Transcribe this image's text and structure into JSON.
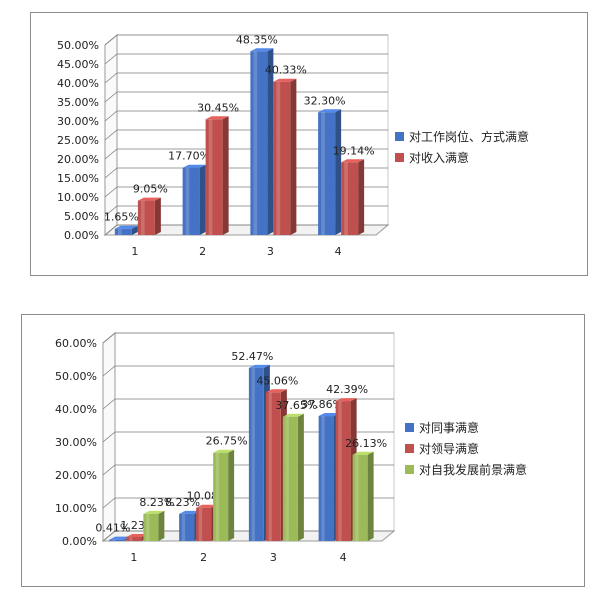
{
  "chart_data": [
    {
      "type": "bar",
      "categories": [
        "1",
        "2",
        "3",
        "4"
      ],
      "series": [
        {
          "name": "对工作岗位、方式满意",
          "values": [
            1.65,
            17.7,
            48.35,
            32.3
          ],
          "labels": [
            "1.65%",
            "17.70%",
            "48.35%",
            "32.30%"
          ],
          "color": "#4472c4"
        },
        {
          "name": "对收入满意",
          "values": [
            9.05,
            30.45,
            40.33,
            19.14
          ],
          "labels": [
            "9.05%",
            "30.45%",
            "40.33%",
            "19.14%"
          ],
          "color": "#c0504d"
        }
      ],
      "ylim": [
        0,
        50
      ],
      "yticks": [
        "0.00%",
        "5.00%",
        "10.00%",
        "15.00%",
        "20.00%",
        "25.00%",
        "30.00%",
        "35.00%",
        "40.00%",
        "45.00%",
        "50.00%"
      ],
      "grid": true,
      "legend_position": "right",
      "style": "3d-column"
    },
    {
      "type": "bar",
      "categories": [
        "1",
        "2",
        "3",
        "4"
      ],
      "series": [
        {
          "name": "对同事满意",
          "values": [
            0.41,
            8.23,
            52.47,
            37.86
          ],
          "labels": [
            "0.41%",
            "8.23%",
            "52.47%",
            "37.86%"
          ],
          "color": "#4472c4"
        },
        {
          "name": "对领导满意",
          "values": [
            1.23,
            10.08,
            45.06,
            42.39
          ],
          "labels": [
            "1.23%",
            "10.08%",
            "45.06%",
            "42.39%"
          ],
          "color": "#c0504d"
        },
        {
          "name": "对自我发展前景满意",
          "values": [
            8.23,
            26.75,
            37.65,
            26.13
          ],
          "labels": [
            "8.23%",
            "26.75%",
            "37.65%",
            "26.13%"
          ],
          "color": "#9bbb59"
        }
      ],
      "ylim": [
        0,
        60
      ],
      "yticks": [
        "0.00%",
        "10.00%",
        "20.00%",
        "30.00%",
        "40.00%",
        "50.00%",
        "60.00%"
      ],
      "grid": true,
      "legend_position": "right",
      "style": "3d-column"
    }
  ]
}
